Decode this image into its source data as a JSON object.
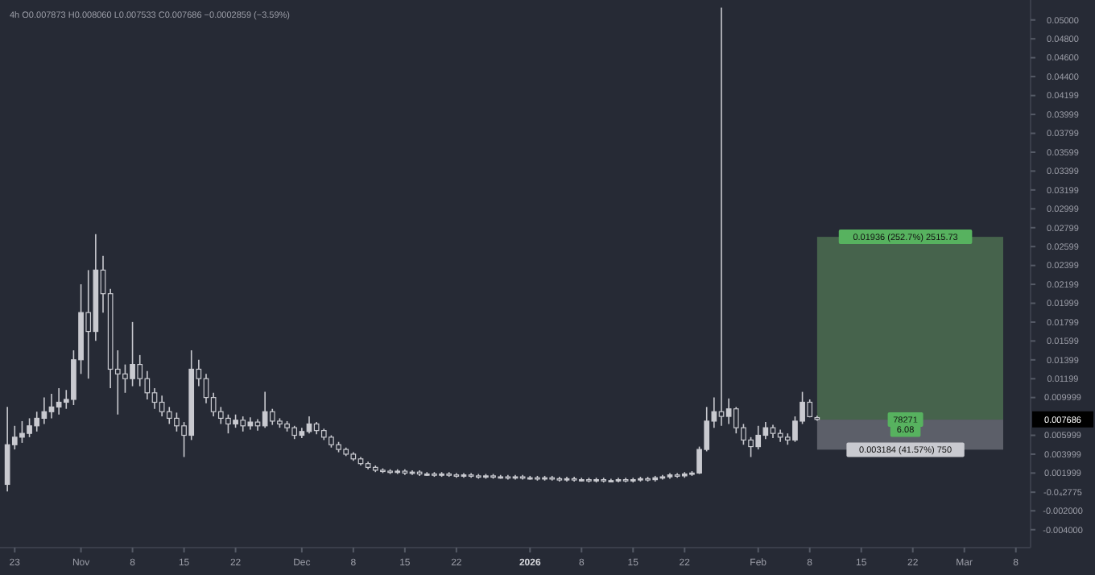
{
  "chart_data": {
    "type": "candlestick",
    "title": "4h  O0.007873  H0.008060  L0.007533  C0.007686  −0.0002859 (−3.59%)",
    "color": "#c9cad0",
    "x": [
      "2025-10-22",
      "2025-10-23",
      "2025-10-24",
      "2025-10-25",
      "2025-10-26",
      "2025-10-27",
      "2025-10-28",
      "2025-10-29",
      "2025-10-30",
      "2025-10-31",
      "2025-11-01",
      "2025-11-02",
      "2025-11-03",
      "2025-11-04",
      "2025-11-05",
      "2025-11-06",
      "2025-11-07",
      "2025-11-08",
      "2025-11-09",
      "2025-11-10",
      "2025-11-11",
      "2025-11-12",
      "2025-11-13",
      "2025-11-14",
      "2025-11-15",
      "2025-11-16",
      "2025-11-17",
      "2025-11-18",
      "2025-11-19",
      "2025-11-20",
      "2025-11-21",
      "2025-11-22",
      "2025-11-23",
      "2025-11-24",
      "2025-11-25",
      "2025-11-26",
      "2025-11-27",
      "2025-11-28",
      "2025-11-29",
      "2025-11-30",
      "2025-12-01",
      "2025-12-02",
      "2025-12-03",
      "2025-12-04",
      "2025-12-05",
      "2025-12-06",
      "2025-12-07",
      "2025-12-08",
      "2025-12-09",
      "2025-12-10",
      "2025-12-11",
      "2025-12-12",
      "2025-12-13",
      "2025-12-14",
      "2025-12-15",
      "2025-12-16",
      "2025-12-17",
      "2025-12-18",
      "2025-12-19",
      "2025-12-20",
      "2025-12-21",
      "2025-12-22",
      "2025-12-23",
      "2025-12-24",
      "2025-12-25",
      "2025-12-26",
      "2025-12-27",
      "2025-12-28",
      "2025-12-29",
      "2025-12-30",
      "2025-12-31",
      "2026-01-01",
      "2026-01-02",
      "2026-01-03",
      "2026-01-04",
      "2026-01-05",
      "2026-01-06",
      "2026-01-07",
      "2026-01-08",
      "2026-01-09",
      "2026-01-10",
      "2026-01-11",
      "2026-01-12",
      "2026-01-13",
      "2026-01-14",
      "2026-01-15",
      "2026-01-16",
      "2026-01-17",
      "2026-01-18",
      "2026-01-19",
      "2026-01-20",
      "2026-01-21",
      "2026-01-22",
      "2026-01-23",
      "2026-01-24",
      "2026-01-25",
      "2026-01-26",
      "2026-01-27",
      "2026-01-28",
      "2026-01-29",
      "2026-01-30",
      "2026-01-31",
      "2026-02-01",
      "2026-02-02",
      "2026-02-03",
      "2026-02-04",
      "2026-02-05",
      "2026-02-06",
      "2026-02-07",
      "2026-02-08",
      "2026-02-09"
    ],
    "ohlc": [
      [
        0.0008,
        0.009,
        5e-05,
        0.005
      ],
      [
        0.005,
        0.007,
        0.0045,
        0.0058
      ],
      [
        0.0058,
        0.0075,
        0.0052,
        0.0062
      ],
      [
        0.0062,
        0.0078,
        0.0058,
        0.007
      ],
      [
        0.007,
        0.0085,
        0.0064,
        0.0078
      ],
      [
        0.0078,
        0.01,
        0.0072,
        0.0085
      ],
      [
        0.0085,
        0.0104,
        0.0078,
        0.009
      ],
      [
        0.009,
        0.011,
        0.0082,
        0.0095
      ],
      [
        0.0095,
        0.0108,
        0.0088,
        0.0098
      ],
      [
        0.0098,
        0.015,
        0.0092,
        0.014
      ],
      [
        0.014,
        0.022,
        0.0125,
        0.019
      ],
      [
        0.019,
        0.0235,
        0.012,
        0.017
      ],
      [
        0.017,
        0.0273,
        0.016,
        0.0235
      ],
      [
        0.0235,
        0.025,
        0.019,
        0.021
      ],
      [
        0.021,
        0.0215,
        0.011,
        0.013
      ],
      [
        0.013,
        0.015,
        0.0082,
        0.0125
      ],
      [
        0.0125,
        0.0135,
        0.0105,
        0.012
      ],
      [
        0.012,
        0.018,
        0.0112,
        0.0135
      ],
      [
        0.0135,
        0.0145,
        0.0112,
        0.012
      ],
      [
        0.012,
        0.0128,
        0.0098,
        0.0105
      ],
      [
        0.0105,
        0.011,
        0.0088,
        0.0095
      ],
      [
        0.0095,
        0.0102,
        0.008,
        0.0085
      ],
      [
        0.0085,
        0.009,
        0.0072,
        0.0078
      ],
      [
        0.0078,
        0.0084,
        0.0064,
        0.007
      ],
      [
        0.007,
        0.0074,
        0.0037,
        0.006
      ],
      [
        0.006,
        0.015,
        0.0055,
        0.013
      ],
      [
        0.013,
        0.014,
        0.0112,
        0.012
      ],
      [
        0.012,
        0.0125,
        0.0094,
        0.01
      ],
      [
        0.01,
        0.0105,
        0.008,
        0.0085
      ],
      [
        0.0085,
        0.009,
        0.0072,
        0.0078
      ],
      [
        0.0078,
        0.0082,
        0.0062,
        0.0072
      ],
      [
        0.0072,
        0.0082,
        0.0068,
        0.0076
      ],
      [
        0.0076,
        0.008,
        0.0064,
        0.007
      ],
      [
        0.007,
        0.0079,
        0.0066,
        0.0074
      ],
      [
        0.0074,
        0.0077,
        0.0065,
        0.007
      ],
      [
        0.007,
        0.0106,
        0.0068,
        0.0085
      ],
      [
        0.0085,
        0.0088,
        0.0071,
        0.0075
      ],
      [
        0.0075,
        0.0078,
        0.0068,
        0.0072
      ],
      [
        0.0072,
        0.0075,
        0.0064,
        0.0068
      ],
      [
        0.0068,
        0.007,
        0.0056,
        0.006
      ],
      [
        0.006,
        0.0068,
        0.0057,
        0.0064
      ],
      [
        0.0064,
        0.008,
        0.0062,
        0.0072
      ],
      [
        0.0072,
        0.0074,
        0.0061,
        0.0065
      ],
      [
        0.0065,
        0.0067,
        0.0055,
        0.0058
      ],
      [
        0.0058,
        0.006,
        0.0047,
        0.005
      ],
      [
        0.005,
        0.0053,
        0.0042,
        0.0045
      ],
      [
        0.0045,
        0.0047,
        0.0038,
        0.004
      ],
      [
        0.004,
        0.0042,
        0.0033,
        0.0035
      ],
      [
        0.0035,
        0.0037,
        0.0028,
        0.003
      ],
      [
        0.003,
        0.0032,
        0.0024,
        0.0026
      ],
      [
        0.0026,
        0.0028,
        0.0021,
        0.0023
      ],
      [
        0.0023,
        0.0025,
        0.002,
        0.0022
      ],
      [
        0.0022,
        0.0024,
        0.0019,
        0.0021
      ],
      [
        0.0021,
        0.0024,
        0.0019,
        0.0022
      ],
      [
        0.0022,
        0.0024,
        0.0018,
        0.002
      ],
      [
        0.002,
        0.0023,
        0.0018,
        0.0021
      ],
      [
        0.0021,
        0.0023,
        0.0017,
        0.0019
      ],
      [
        0.0019,
        0.0021,
        0.0017,
        0.0019
      ],
      [
        0.0019,
        0.0021,
        0.0016,
        0.0018
      ],
      [
        0.0018,
        0.0021,
        0.0016,
        0.0019
      ],
      [
        0.0019,
        0.0021,
        0.0016,
        0.0018
      ],
      [
        0.0018,
        0.002,
        0.0015,
        0.0017
      ],
      [
        0.0017,
        0.002,
        0.0015,
        0.0018
      ],
      [
        0.0018,
        0.002,
        0.0015,
        0.0017
      ],
      [
        0.0017,
        0.0019,
        0.0014,
        0.0016
      ],
      [
        0.0016,
        0.0019,
        0.0014,
        0.0017
      ],
      [
        0.0017,
        0.0019,
        0.0014,
        0.0016
      ],
      [
        0.0016,
        0.0018,
        0.0014,
        0.0016
      ],
      [
        0.0016,
        0.0018,
        0.0013,
        0.0015
      ],
      [
        0.0015,
        0.0018,
        0.0013,
        0.0016
      ],
      [
        0.0016,
        0.0018,
        0.0013,
        0.0015
      ],
      [
        0.0015,
        0.0017,
        0.0013,
        0.0015
      ],
      [
        0.0015,
        0.0017,
        0.0012,
        0.0014
      ],
      [
        0.0014,
        0.0017,
        0.0012,
        0.0015
      ],
      [
        0.0015,
        0.0017,
        0.0012,
        0.0014
      ],
      [
        0.0014,
        0.0016,
        0.0011,
        0.0013
      ],
      [
        0.0013,
        0.0016,
        0.0011,
        0.0014
      ],
      [
        0.0014,
        0.0016,
        0.0011,
        0.0013
      ],
      [
        0.0013,
        0.0015,
        0.0011,
        0.0013
      ],
      [
        0.0013,
        0.0015,
        0.001,
        0.0012
      ],
      [
        0.0012,
        0.0015,
        0.001,
        0.0013
      ],
      [
        0.0013,
        0.0015,
        0.001,
        0.0012
      ],
      [
        0.0012,
        0.0014,
        0.001,
        0.0012
      ],
      [
        0.0012,
        0.0015,
        0.001,
        0.0013
      ],
      [
        0.0013,
        0.0015,
        0.001,
        0.0012
      ],
      [
        0.0012,
        0.0015,
        0.001,
        0.0013
      ],
      [
        0.0013,
        0.0016,
        0.0011,
        0.0014
      ],
      [
        0.0014,
        0.0016,
        0.0011,
        0.0013
      ],
      [
        0.0013,
        0.0017,
        0.0011,
        0.0015
      ],
      [
        0.0015,
        0.0018,
        0.0013,
        0.0016
      ],
      [
        0.0016,
        0.002,
        0.0014,
        0.0018
      ],
      [
        0.0018,
        0.002,
        0.0015,
        0.0017
      ],
      [
        0.0017,
        0.0021,
        0.0015,
        0.0019
      ],
      [
        0.0019,
        0.0022,
        0.0017,
        0.002
      ],
      [
        0.002,
        0.0048,
        0.0019,
        0.0045
      ],
      [
        0.0045,
        0.009,
        0.0043,
        0.0075
      ],
      [
        0.0075,
        0.01,
        0.0068,
        0.0085
      ],
      [
        0.0085,
        0.0513,
        0.007,
        0.008
      ],
      [
        0.008,
        0.0099,
        0.0072,
        0.0088
      ],
      [
        0.0088,
        0.009,
        0.0062,
        0.0068
      ],
      [
        0.0068,
        0.0072,
        0.005,
        0.0055
      ],
      [
        0.0055,
        0.0058,
        0.0037,
        0.0048
      ],
      [
        0.0048,
        0.007,
        0.0045,
        0.006
      ],
      [
        0.006,
        0.0074,
        0.0056,
        0.0068
      ],
      [
        0.0068,
        0.0071,
        0.0057,
        0.0062
      ],
      [
        0.0062,
        0.0066,
        0.0053,
        0.0058
      ],
      [
        0.0058,
        0.0062,
        0.005,
        0.0055
      ],
      [
        0.0055,
        0.008,
        0.0053,
        0.0075
      ],
      [
        0.0075,
        0.0106,
        0.0072,
        0.0095
      ],
      [
        0.0095,
        0.0098,
        0.0079,
        0.007972
      ],
      [
        0.007873,
        0.00806,
        0.007533,
        0.007686
      ]
    ],
    "xlim": [
      "2025-10-21",
      "2026-03-10"
    ],
    "xticks": [
      {
        "value": "2025-10-23",
        "label": "23"
      },
      {
        "value": "2025-11-01",
        "label": "Nov"
      },
      {
        "value": "2025-11-08",
        "label": "8"
      },
      {
        "value": "2025-11-15",
        "label": "15"
      },
      {
        "value": "2025-11-22",
        "label": "22"
      },
      {
        "value": "2025-12-01",
        "label": "Dec"
      },
      {
        "value": "2025-12-08",
        "label": "8"
      },
      {
        "value": "2025-12-15",
        "label": "15"
      },
      {
        "value": "2025-12-22",
        "label": "22"
      },
      {
        "value": "2026-01-01",
        "label": "2026"
      },
      {
        "value": "2026-01-08",
        "label": "8"
      },
      {
        "value": "2026-01-15",
        "label": "15"
      },
      {
        "value": "2026-01-22",
        "label": "22"
      },
      {
        "value": "2026-02-01",
        "label": "Feb"
      },
      {
        "value": "2026-02-08",
        "label": "8"
      },
      {
        "value": "2026-02-15",
        "label": "15"
      },
      {
        "value": "2026-02-22",
        "label": "22"
      },
      {
        "value": "2026-03-01",
        "label": "Mar"
      },
      {
        "value": "2026-03-08",
        "label": "8"
      }
    ],
    "ylim": [
      -0.0059,
      0.0516
    ],
    "yticks": [
      {
        "value": 0.05,
        "label": "0.05000"
      },
      {
        "value": 0.048,
        "label": "0.04800"
      },
      {
        "value": 0.046,
        "label": "0.04600"
      },
      {
        "value": 0.044,
        "label": "0.04400"
      },
      0.04199,
      0.03999,
      0.03799,
      0.03599,
      0.03399,
      0.03199,
      0.02999,
      0.02799,
      0.02599,
      0.02399,
      0.02199,
      0.01999,
      0.01799,
      0.01599,
      0.01399,
      0.01199,
      0.009999,
      0.005999,
      0.003999,
      0.001999,
      {
        "value": -2.775e-05,
        "label": "-0.0₄2775"
      },
      {
        "value": -0.002,
        "label": "-0.002000"
      },
      {
        "value": -0.004,
        "label": "-0.004000"
      }
    ],
    "bands": [
      {
        "axis": "y",
        "from": 0.00766,
        "to": 0.02702,
        "color": "#46634c"
      },
      {
        "axis": "y",
        "from": 0.004476,
        "to": 0.00766,
        "color": "#5c5f69"
      }
    ],
    "annotations": [
      {
        "text": "0.01936 (252.7%) 2515.73",
        "x": "2026-02-21",
        "y": 0.02702
      },
      {
        "text": "78271",
        "x": "2026-02-21",
        "y": 0.00766
      },
      {
        "text": "6.08",
        "x": "2026-02-21",
        "y": 0.0066
      },
      {
        "text": "0.003184 (41.57%) 750",
        "x": "2026-02-21",
        "y": 0.004476
      },
      "0.007686"
    ]
  }
}
